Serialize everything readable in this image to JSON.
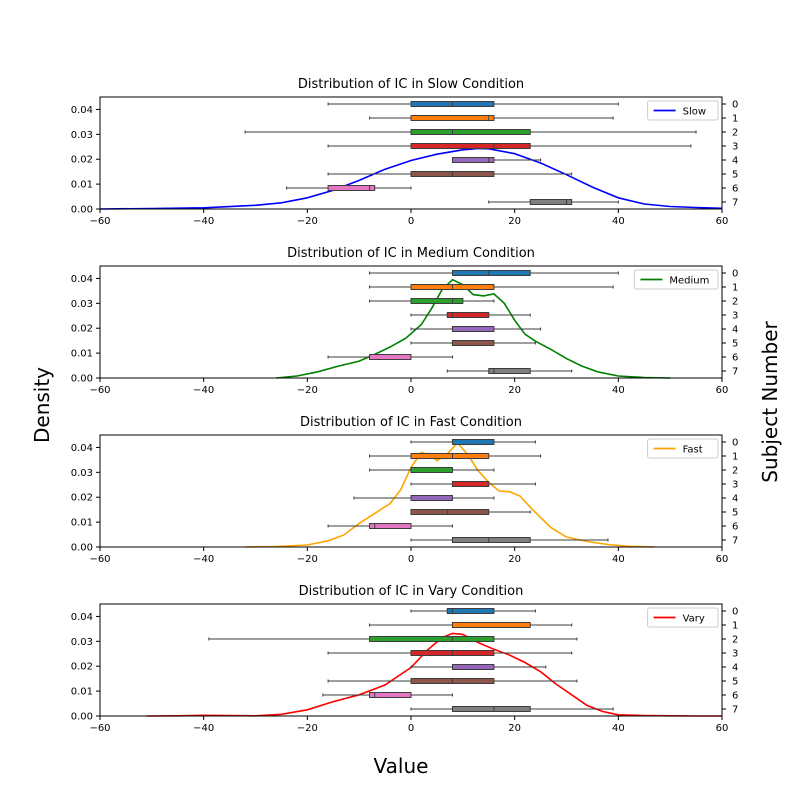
{
  "figure": {
    "xlabel": "Value",
    "ylabel_left": "Density",
    "ylabel_right": "Subject Number"
  },
  "chart_data": [
    {
      "type": "box",
      "title": "Distribution of IC in Slow Condition",
      "legend_label": "Slow",
      "legend_position": "upper right",
      "kde_color": "#0000ff",
      "xlim": [
        -60,
        60
      ],
      "ylim": [
        0,
        0.045
      ],
      "xticks": [
        -60,
        -40,
        -20,
        0,
        20,
        40,
        60
      ],
      "yticks": [
        0.0,
        0.01,
        0.02,
        0.03,
        0.04
      ],
      "subjects": [
        {
          "subject": 0,
          "whisker_low": -16,
          "q1": 0,
          "median": 8,
          "q3": 16,
          "whisker_high": 40
        },
        {
          "subject": 1,
          "whisker_low": -8,
          "q1": 0,
          "median": 15,
          "q3": 16,
          "whisker_high": 39
        },
        {
          "subject": 2,
          "whisker_low": -32,
          "q1": 0,
          "median": 8,
          "q3": 23,
          "whisker_high": 55
        },
        {
          "subject": 3,
          "whisker_low": -16,
          "q1": 0,
          "median": 16,
          "q3": 23,
          "whisker_high": 54
        },
        {
          "subject": 4,
          "whisker_low": 8,
          "q1": 8,
          "median": 15,
          "q3": 16,
          "whisker_high": 25
        },
        {
          "subject": 5,
          "whisker_low": -16,
          "q1": 0,
          "median": 8,
          "q3": 16,
          "whisker_high": 31
        },
        {
          "subject": 6,
          "whisker_low": -24,
          "q1": -16,
          "median": -8,
          "q3": -7,
          "whisker_high": 0
        },
        {
          "subject": 7,
          "whisker_low": 15,
          "q1": 23,
          "median": 30,
          "q3": 31,
          "whisker_high": 40
        }
      ],
      "density": {
        "x": [
          -60,
          -50,
          -40,
          -30,
          -25,
          -20,
          -15,
          -10,
          -5,
          0,
          5,
          10,
          13,
          15,
          20,
          25,
          30,
          35,
          40,
          45,
          50,
          55,
          60
        ],
        "y": [
          0.0,
          0.0002,
          0.0005,
          0.0015,
          0.0025,
          0.0045,
          0.0075,
          0.0115,
          0.016,
          0.0195,
          0.022,
          0.0238,
          0.0243,
          0.0242,
          0.0222,
          0.0185,
          0.0138,
          0.0088,
          0.0045,
          0.002,
          0.001,
          0.0006,
          0.0003
        ]
      }
    },
    {
      "type": "box",
      "title": "Distribution of IC in Medium Condition",
      "legend_label": "Medium",
      "legend_position": "upper right",
      "kde_color": "#008000",
      "xlim": [
        -60,
        60
      ],
      "ylim": [
        0,
        0.045
      ],
      "xticks": [
        -60,
        -40,
        -20,
        0,
        20,
        40,
        60
      ],
      "yticks": [
        0.0,
        0.01,
        0.02,
        0.03,
        0.04
      ],
      "subjects": [
        {
          "subject": 0,
          "whisker_low": -8,
          "q1": 8,
          "median": 15,
          "q3": 23,
          "whisker_high": 40
        },
        {
          "subject": 1,
          "whisker_low": -8,
          "q1": 0,
          "median": 8,
          "q3": 16,
          "whisker_high": 39
        },
        {
          "subject": 2,
          "whisker_low": -8,
          "q1": 0,
          "median": 8,
          "q3": 10,
          "whisker_high": 16
        },
        {
          "subject": 3,
          "whisker_low": 0,
          "q1": 7,
          "median": 8,
          "q3": 15,
          "whisker_high": 23
        },
        {
          "subject": 4,
          "whisker_low": 0,
          "q1": 8,
          "median": 8,
          "q3": 16,
          "whisker_high": 25
        },
        {
          "subject": 5,
          "whisker_low": 0,
          "q1": 8,
          "median": 8,
          "q3": 16,
          "whisker_high": 24
        },
        {
          "subject": 6,
          "whisker_low": -16,
          "q1": -8,
          "median": -8,
          "q3": 0,
          "whisker_high": 8
        },
        {
          "subject": 7,
          "whisker_low": 7,
          "q1": 15,
          "median": 16,
          "q3": 23,
          "whisker_high": 31
        }
      ],
      "density": {
        "x": [
          -26,
          -22,
          -18,
          -14,
          -10,
          -7,
          -4,
          -1,
          2,
          4,
          6,
          8,
          10,
          12,
          14,
          16,
          18,
          20,
          22,
          24,
          27,
          30,
          33,
          36,
          40,
          45,
          50
        ],
        "y": [
          0.0,
          0.0008,
          0.0025,
          0.0048,
          0.0068,
          0.0095,
          0.0125,
          0.016,
          0.0215,
          0.028,
          0.0355,
          0.0395,
          0.0375,
          0.0335,
          0.033,
          0.0338,
          0.03,
          0.0232,
          0.0176,
          0.0148,
          0.0115,
          0.0078,
          0.0048,
          0.0025,
          0.0008,
          0.0002,
          0.0
        ]
      }
    },
    {
      "type": "box",
      "title": "Distribution of IC in Fast Condition",
      "legend_label": "Fast",
      "legend_position": "upper right",
      "kde_color": "#ffa500",
      "xlim": [
        -60,
        60
      ],
      "ylim": [
        0,
        0.045
      ],
      "xticks": [
        -60,
        -40,
        -20,
        0,
        20,
        40,
        60
      ],
      "yticks": [
        0.0,
        0.01,
        0.02,
        0.03,
        0.04
      ],
      "subjects": [
        {
          "subject": 0,
          "whisker_low": 0,
          "q1": 8,
          "median": 8,
          "q3": 16,
          "whisker_high": 24
        },
        {
          "subject": 1,
          "whisker_low": -8,
          "q1": 0,
          "median": 8,
          "q3": 15,
          "whisker_high": 25
        },
        {
          "subject": 2,
          "whisker_low": -8,
          "q1": 0,
          "median": 0,
          "q3": 8,
          "whisker_high": 16
        },
        {
          "subject": 3,
          "whisker_low": 0,
          "q1": 8,
          "median": 8,
          "q3": 15,
          "whisker_high": 24
        },
        {
          "subject": 4,
          "whisker_low": -11,
          "q1": 0,
          "median": 0,
          "q3": 8,
          "whisker_high": 16
        },
        {
          "subject": 5,
          "whisker_low": 0,
          "q1": 0,
          "median": 7,
          "q3": 15,
          "whisker_high": 23
        },
        {
          "subject": 6,
          "whisker_low": -16,
          "q1": -8,
          "median": -7,
          "q3": 0,
          "whisker_high": 8
        },
        {
          "subject": 7,
          "whisker_low": 0,
          "q1": 8,
          "median": 15,
          "q3": 23,
          "whisker_high": 38
        }
      ],
      "density": {
        "x": [
          -32,
          -26,
          -20,
          -16,
          -13,
          -10,
          -7,
          -4,
          -2,
          0,
          2,
          4,
          5,
          7,
          9,
          11,
          13,
          15,
          17,
          19,
          21,
          23,
          25,
          27,
          30,
          34,
          38,
          42,
          47
        ],
        "y": [
          0.0,
          0.0002,
          0.0008,
          0.0025,
          0.0048,
          0.0095,
          0.0135,
          0.0175,
          0.023,
          0.032,
          0.038,
          0.0365,
          0.0347,
          0.0375,
          0.0418,
          0.037,
          0.0305,
          0.026,
          0.0225,
          0.0222,
          0.0205,
          0.016,
          0.0118,
          0.0078,
          0.004,
          0.0022,
          0.001,
          0.0003,
          0.0
        ]
      }
    },
    {
      "type": "box",
      "title": "Distribution of IC in Vary Condition",
      "legend_label": "Vary",
      "legend_position": "upper right",
      "kde_color": "#ff0000",
      "xlim": [
        -60,
        60
      ],
      "ylim": [
        0,
        0.045
      ],
      "xticks": [
        -60,
        -40,
        -20,
        0,
        20,
        40,
        60
      ],
      "yticks": [
        0.0,
        0.01,
        0.02,
        0.03,
        0.04
      ],
      "subjects": [
        {
          "subject": 0,
          "whisker_low": 0,
          "q1": 7,
          "median": 8,
          "q3": 16,
          "whisker_high": 24
        },
        {
          "subject": 1,
          "whisker_low": -8,
          "q1": 8,
          "median": 8,
          "q3": 23,
          "whisker_high": 31
        },
        {
          "subject": 2,
          "whisker_low": -39,
          "q1": -8,
          "median": 8,
          "q3": 16,
          "whisker_high": 32
        },
        {
          "subject": 3,
          "whisker_low": -16,
          "q1": 0,
          "median": 8,
          "q3": 16,
          "whisker_high": 31
        },
        {
          "subject": 4,
          "whisker_low": 0,
          "q1": 8,
          "median": 8,
          "q3": 16,
          "whisker_high": 26
        },
        {
          "subject": 5,
          "whisker_low": -16,
          "q1": 0,
          "median": 8,
          "q3": 16,
          "whisker_high": 32
        },
        {
          "subject": 6,
          "whisker_low": -17,
          "q1": -8,
          "median": -7,
          "q3": 0,
          "whisker_high": 8
        },
        {
          "subject": 7,
          "whisker_low": 0,
          "q1": 8,
          "median": 16,
          "q3": 23,
          "whisker_high": 39
        }
      ],
      "density": {
        "x": [
          -51,
          -45,
          -40,
          -35,
          -30,
          -25,
          -20,
          -15,
          -10,
          -5,
          0,
          3,
          6,
          8,
          10,
          13,
          16,
          19,
          22,
          25,
          28,
          31,
          34,
          37,
          40,
          45,
          50,
          55,
          60
        ],
        "y": [
          0.0,
          0.0001,
          0.0003,
          0.0002,
          0.0001,
          0.0007,
          0.0025,
          0.0058,
          0.0085,
          0.0125,
          0.0195,
          0.0262,
          0.0315,
          0.0332,
          0.0328,
          0.0295,
          0.0268,
          0.0245,
          0.0215,
          0.0178,
          0.0128,
          0.0085,
          0.0042,
          0.0018,
          0.0005,
          0.0002,
          0.0001,
          0.0,
          0.0
        ]
      }
    }
  ]
}
